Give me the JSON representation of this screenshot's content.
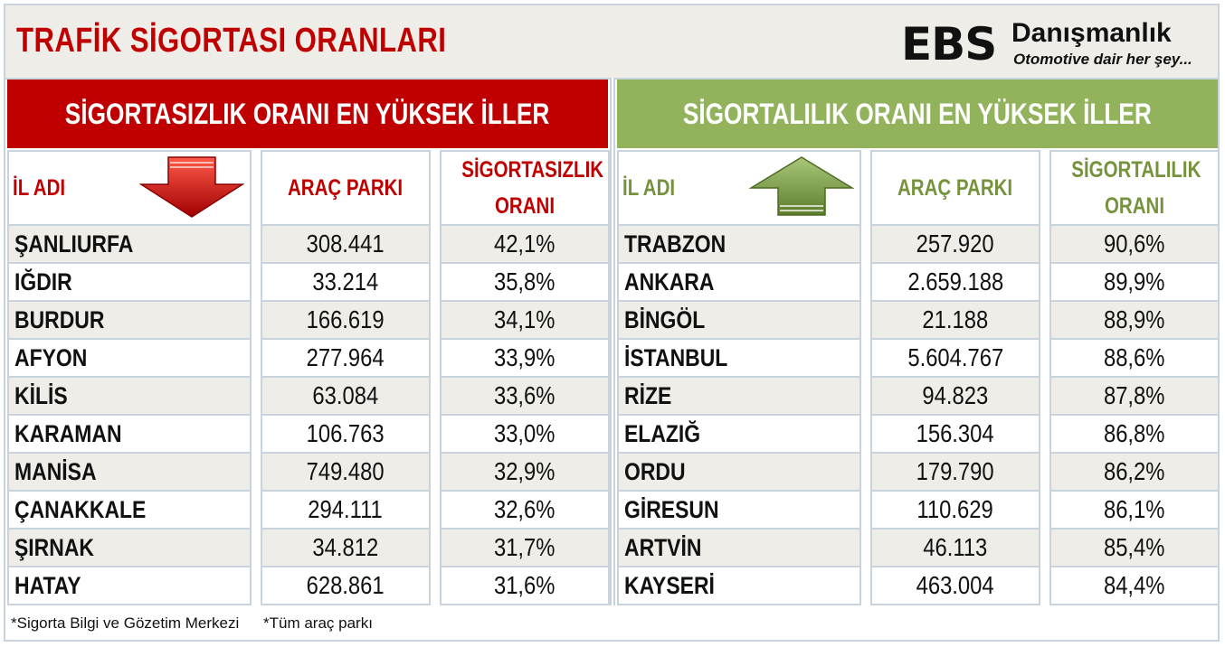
{
  "title": "TRAFİK SİGORTASI ORANLARI",
  "logo": {
    "mark": "EBS",
    "name": "Danışmanlık",
    "tagline": "Otomotive dair her şey..."
  },
  "left_panel": {
    "heading": "SİGORTASIZLIK ORANI EN YÜKSEK İLLER",
    "columns": [
      "İL ADI",
      "ARAÇ PARKI",
      "SİGORTASIZLIK ORANI"
    ],
    "arrow_icon": "red-down-arrow-icon",
    "accent": "#c00000",
    "rows": [
      {
        "name": "ŞANLIURFA",
        "park": "308.441",
        "rate": "42,1%"
      },
      {
        "name": "IĞDIR",
        "park": "33.214",
        "rate": "35,8%"
      },
      {
        "name": "BURDUR",
        "park": "166.619",
        "rate": "34,1%"
      },
      {
        "name": "AFYON",
        "park": "277.964",
        "rate": "33,9%"
      },
      {
        "name": "KİLİS",
        "park": "63.084",
        "rate": "33,6%"
      },
      {
        "name": "KARAMAN",
        "park": "106.763",
        "rate": "33,0%"
      },
      {
        "name": "MANİSA",
        "park": "749.480",
        "rate": "32,9%"
      },
      {
        "name": "ÇANAKKALE",
        "park": "294.111",
        "rate": "32,6%"
      },
      {
        "name": "ŞIRNAK",
        "park": "34.812",
        "rate": "31,7%"
      },
      {
        "name": "HATAY",
        "park": "628.861",
        "rate": "31,6%"
      }
    ]
  },
  "right_panel": {
    "heading": "SİGORTALILIK ORANI EN YÜKSEK İLLER",
    "columns": [
      "İL ADI",
      "ARAÇ PARKI",
      "SİGORTALILIK ORANI"
    ],
    "arrow_icon": "green-up-arrow-icon",
    "accent": "#92b35c",
    "rows": [
      {
        "name": "TRABZON",
        "park": "257.920",
        "rate": "90,6%"
      },
      {
        "name": "ANKARA",
        "park": "2.659.188",
        "rate": "89,9%"
      },
      {
        "name": "BİNGÖL",
        "park": "21.188",
        "rate": "88,9%"
      },
      {
        "name": "İSTANBUL",
        "park": "5.604.767",
        "rate": "88,6%"
      },
      {
        "name": "RİZE",
        "park": "94.823",
        "rate": "87,8%"
      },
      {
        "name": "ELAZIĞ",
        "park": "156.304",
        "rate": "86,8%"
      },
      {
        "name": "ORDU",
        "park": "179.790",
        "rate": "86,2%"
      },
      {
        "name": "GİRESUN",
        "park": "110.629",
        "rate": "86,1%"
      },
      {
        "name": "ARTVİN",
        "park": "46.113",
        "rate": "85,4%"
      },
      {
        "name": "KAYSERİ",
        "park": "463.004",
        "rate": "84,4%"
      }
    ]
  },
  "footnotes": [
    "*Sigorta Bilgi ve Gözetim Merkezi",
    "*Tüm araç parkı"
  ]
}
